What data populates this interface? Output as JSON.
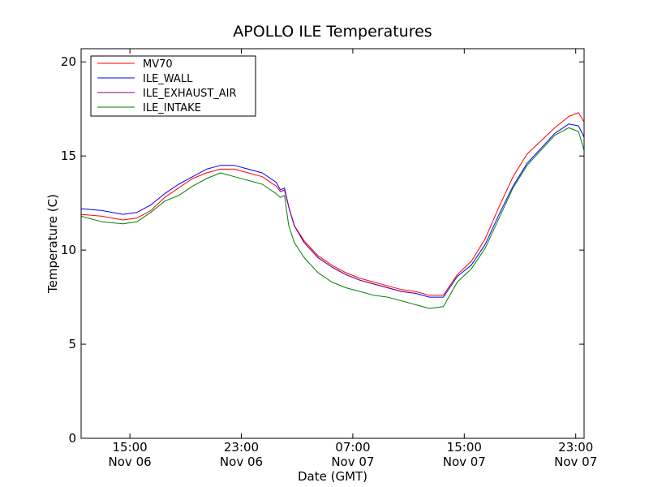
{
  "chart_data": {
    "type": "line",
    "title": "APOLLO ILE Temperatures",
    "xlabel": "Date (GMT)",
    "ylabel": "Temperature (C)",
    "x_unit": "hour",
    "xlim": [
      11.5,
      47.6
    ],
    "ylim": [
      0,
      20.7
    ],
    "yticks": [
      {
        "value": 0,
        "label": "0"
      },
      {
        "value": 5,
        "label": "5"
      },
      {
        "value": 10,
        "label": "10"
      },
      {
        "value": 15,
        "label": "15"
      },
      {
        "value": 20,
        "label": "20"
      }
    ],
    "xticks": [
      {
        "value": 15,
        "time": "15:00",
        "date": "Nov 06"
      },
      {
        "value": 23,
        "time": "23:00",
        "date": "Nov 06"
      },
      {
        "value": 31,
        "time": "07:00",
        "date": "Nov 07"
      },
      {
        "value": 39,
        "time": "15:00",
        "date": "Nov 07"
      },
      {
        "value": 47,
        "time": "23:00",
        "date": "Nov 07"
      }
    ],
    "grid": false,
    "legend_position": "top-left",
    "series": [
      {
        "name": "MV70",
        "color": "#ff0000",
        "x": [
          11.5,
          13,
          14.5,
          15.5,
          16.5,
          17.5,
          18.5,
          19.5,
          20.5,
          21.5,
          22.5,
          23.5,
          24.5,
          25.5,
          25.8,
          26.1,
          26.4,
          26.8,
          27.5,
          28.5,
          29.5,
          30.5,
          31.5,
          32.5,
          33.5,
          34.5,
          35.5,
          36.5,
          37.5,
          38.5,
          39.5,
          40.5,
          41.5,
          42.5,
          43.5,
          44.5,
          45.5,
          46.5,
          47.2,
          47.6
        ],
        "y": [
          11.9,
          11.8,
          11.6,
          11.7,
          12.1,
          12.8,
          13.3,
          13.8,
          14.1,
          14.3,
          14.3,
          14.1,
          13.9,
          13.4,
          13.1,
          13.2,
          12.3,
          11.3,
          10.5,
          9.7,
          9.2,
          8.8,
          8.5,
          8.3,
          8.1,
          7.9,
          7.8,
          7.6,
          7.6,
          8.7,
          9.4,
          10.6,
          12.3,
          13.9,
          15.1,
          15.8,
          16.5,
          17.1,
          17.3,
          16.8
        ]
      },
      {
        "name": "ILE_WALL",
        "color": "#0000ff",
        "x": [
          11.5,
          13,
          14.5,
          15.5,
          16.5,
          17.5,
          18.5,
          19.5,
          20.5,
          21.5,
          22.5,
          23.5,
          24.5,
          25.5,
          25.8,
          26.1,
          26.4,
          26.8,
          27.5,
          28.5,
          29.5,
          30.5,
          31.5,
          32.5,
          33.5,
          34.5,
          35.5,
          36.5,
          37.5,
          38.5,
          39.5,
          40.5,
          41.5,
          42.5,
          43.5,
          44.5,
          45.5,
          46.5,
          47.2,
          47.6
        ],
        "y": [
          12.2,
          12.1,
          11.9,
          12.0,
          12.4,
          13.0,
          13.5,
          13.9,
          14.3,
          14.5,
          14.5,
          14.3,
          14.1,
          13.6,
          13.2,
          13.3,
          12.3,
          11.3,
          10.4,
          9.6,
          9.1,
          8.7,
          8.4,
          8.2,
          8.0,
          7.8,
          7.7,
          7.5,
          7.5,
          8.6,
          9.2,
          10.3,
          11.9,
          13.4,
          14.6,
          15.4,
          16.2,
          16.7,
          16.6,
          16.0
        ]
      },
      {
        "name": "ILE_EXHAUST_AIR",
        "color": "#800080",
        "x": [
          25.8,
          26.1,
          26.4,
          26.8,
          27.5,
          28.5,
          29.5,
          30.5,
          31.5,
          32.5,
          33.5,
          34.5,
          35.5
        ],
        "y": [
          13.1,
          13.2,
          12.3,
          11.3,
          10.4,
          9.6,
          9.1,
          8.7,
          8.4,
          8.2,
          8.0,
          7.8,
          7.7
        ]
      },
      {
        "name": "ILE_INTAKE",
        "color": "#008000",
        "x": [
          11.5,
          13,
          14.5,
          15.5,
          16.5,
          17.5,
          18.5,
          19.5,
          20.5,
          21.5,
          22.5,
          23.5,
          24.5,
          25.5,
          25.8,
          26.1,
          26.4,
          26.8,
          27.5,
          28.5,
          29.5,
          30.5,
          31.5,
          32.5,
          33.5,
          34.5,
          35.5,
          36.5,
          37.5,
          38.5,
          39.5,
          40.5,
          41.5,
          42.5,
          43.5,
          44.5,
          45.5,
          46.5,
          47.2,
          47.6
        ],
        "y": [
          11.8,
          11.5,
          11.4,
          11.5,
          12.0,
          12.6,
          12.9,
          13.4,
          13.8,
          14.1,
          13.9,
          13.7,
          13.5,
          13.0,
          12.8,
          12.9,
          11.3,
          10.4,
          9.6,
          8.8,
          8.3,
          8.0,
          7.8,
          7.6,
          7.5,
          7.3,
          7.1,
          6.9,
          7.0,
          8.3,
          9.0,
          10.1,
          11.7,
          13.3,
          14.5,
          15.3,
          16.1,
          16.5,
          16.3,
          15.3
        ]
      }
    ]
  }
}
